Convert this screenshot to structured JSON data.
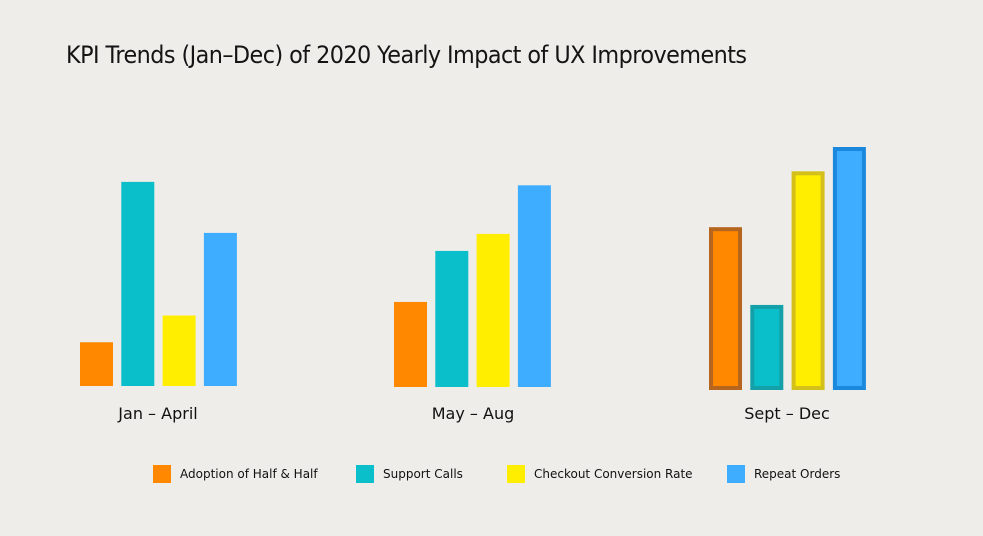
{
  "chart_data": {
    "type": "bar",
    "title": "KPI Trends (Jan–Dec) of 2020 Yearly Impact of UX Improvements",
    "xlabel": "",
    "ylabel": "",
    "ylim": [
      0,
      100
    ],
    "grid": false,
    "legend_position": "bottom",
    "categories": [
      "Jan – April",
      "May – Aug",
      "Sept – Dec"
    ],
    "highlighted_category": "Sept – Dec",
    "series": [
      {
        "name": "Adoption of Half & Half",
        "color": "#ff8800",
        "outline": "#b5651d",
        "values": [
          18,
          35,
          67
        ]
      },
      {
        "name": "Support Calls",
        "color": "#0bbfca",
        "outline": "#14a0a8",
        "values": [
          84,
          56,
          35
        ]
      },
      {
        "name": "Checkout Conversion Rate",
        "color": "#ffee00",
        "outline": "#d4c01a",
        "values": [
          29,
          63,
          90
        ]
      },
      {
        "name": "Repeat Orders",
        "color": "#3fadff",
        "outline": "#1a88dd",
        "values": [
          63,
          83,
          100
        ]
      }
    ]
  }
}
